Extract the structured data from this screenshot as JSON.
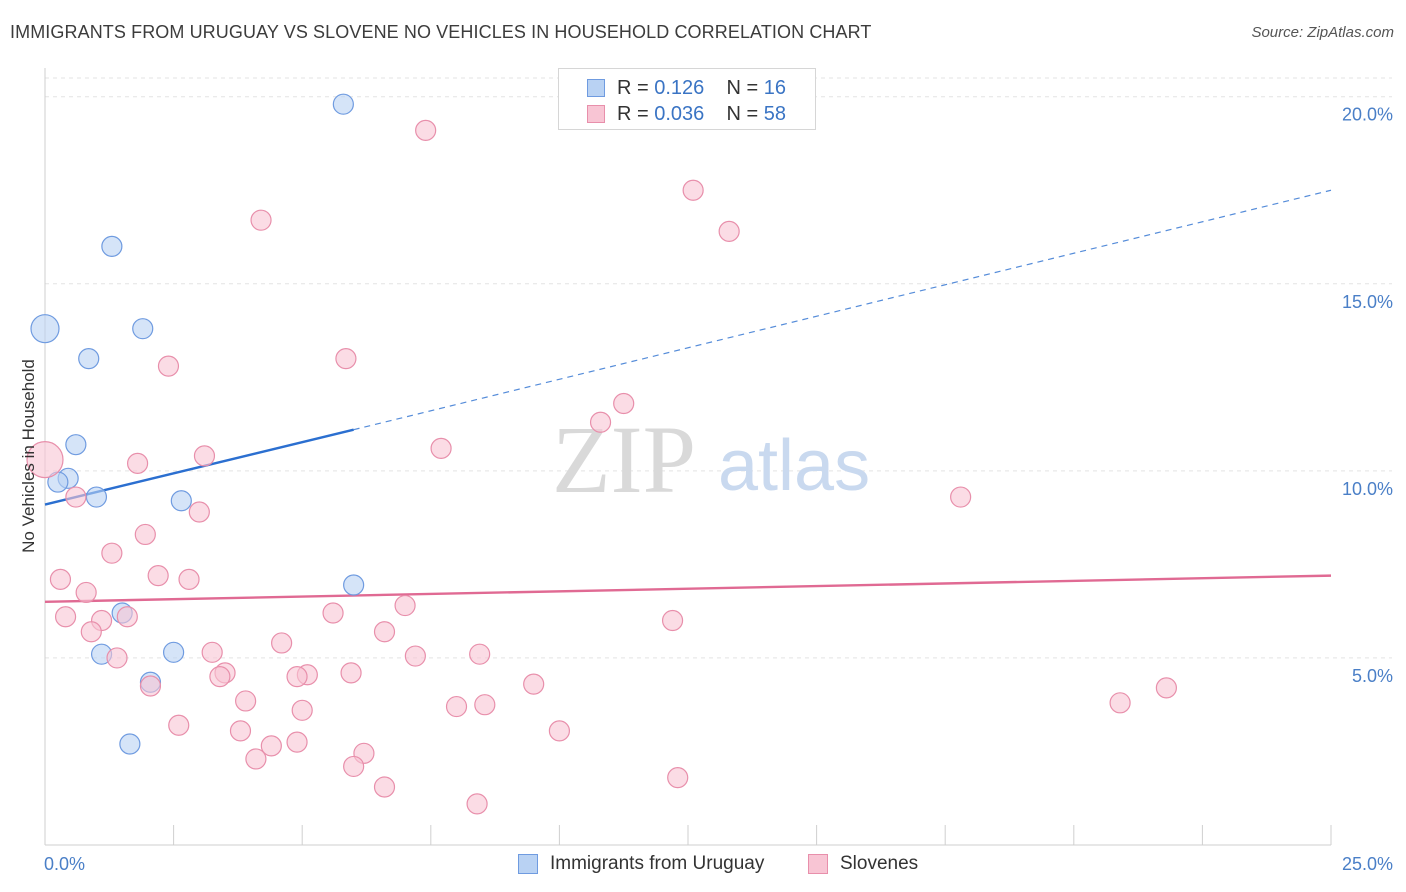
{
  "header": {
    "title": "IMMIGRANTS FROM URUGUAY VS SLOVENE NO VEHICLES IN HOUSEHOLD CORRELATION CHART",
    "source": "Source: ZipAtlas.com"
  },
  "legend": {
    "row1": {
      "r_label": "R = ",
      "r_value": "0.126",
      "n_label": "N = ",
      "n_value": "16"
    },
    "row2": {
      "r_label": "R = ",
      "r_value": "0.036",
      "n_label": "N = ",
      "n_value": "58"
    }
  },
  "bottom_legend": {
    "series1": "Immigrants from Uruguay",
    "series2": "Slovenes"
  },
  "watermark": {
    "zip": "ZIP",
    "atlas": "atlas"
  },
  "colors": {
    "series1_fill": "#b9d2f3",
    "series1_stroke": "#6f9be0",
    "series1_line": "#2b6fd0",
    "series2_fill": "#f8c5d4",
    "series2_stroke": "#e88fab",
    "series2_line": "#e06a93",
    "grid": "#e3e3e3",
    "tick_text": "#4a7fc7"
  },
  "chart_data": {
    "type": "scatter",
    "title": "IMMIGRANTS FROM URUGUAY VS SLOVENE NO VEHICLES IN HOUSEHOLD CORRELATION CHART",
    "xlabel": "",
    "ylabel": "No Vehicles in Household",
    "xlim": [
      0,
      25
    ],
    "ylim": [
      0,
      20.5
    ],
    "x_tick_labels": [
      "0.0%",
      "25.0%"
    ],
    "y_ticks": [
      5,
      10,
      15,
      20
    ],
    "y_tick_labels": [
      "5.0%",
      "10.0%",
      "15.0%",
      "20.0%"
    ],
    "grid": true,
    "series": [
      {
        "name": "Immigrants from Uruguay",
        "r": 0.126,
        "n": 16,
        "trend": {
          "x0": 0,
          "y0": 9.1,
          "x1": 6.0,
          "y1": 11.1,
          "dashed_to_x": 25,
          "dashed_to_y": 17.5
        },
        "points": [
          [
            5.8,
            19.8
          ],
          [
            1.3,
            16.0
          ],
          [
            1.9,
            13.8
          ],
          [
            0.0,
            13.8
          ],
          [
            0.85,
            13.0
          ],
          [
            0.6,
            10.7
          ],
          [
            0.45,
            9.8
          ],
          [
            0.25,
            9.7
          ],
          [
            1.0,
            9.3
          ],
          [
            2.65,
            9.2
          ],
          [
            6.0,
            6.95
          ],
          [
            1.5,
            6.2
          ],
          [
            1.1,
            5.1
          ],
          [
            2.5,
            5.15
          ],
          [
            2.05,
            4.35
          ],
          [
            1.65,
            2.7
          ]
        ],
        "sizes": [
          10,
          10,
          10,
          14,
          10,
          10,
          10,
          10,
          10,
          10,
          10,
          10,
          10,
          10,
          10,
          10
        ]
      },
      {
        "name": "Slovenes",
        "r": 0.036,
        "n": 58,
        "trend": {
          "x0": 0,
          "y0": 6.5,
          "x1": 25,
          "y1": 7.2
        },
        "points": [
          [
            7.4,
            19.1
          ],
          [
            12.6,
            17.5
          ],
          [
            4.2,
            16.7
          ],
          [
            13.3,
            16.4
          ],
          [
            2.4,
            12.8
          ],
          [
            5.85,
            13.0
          ],
          [
            11.25,
            11.8
          ],
          [
            10.8,
            11.3
          ],
          [
            7.7,
            10.6
          ],
          [
            0.0,
            10.3
          ],
          [
            1.8,
            10.2
          ],
          [
            3.1,
            10.4
          ],
          [
            0.6,
            9.3
          ],
          [
            3.0,
            8.9
          ],
          [
            17.8,
            9.3
          ],
          [
            1.95,
            8.3
          ],
          [
            1.3,
            7.8
          ],
          [
            0.3,
            7.1
          ],
          [
            2.2,
            7.2
          ],
          [
            2.8,
            7.1
          ],
          [
            0.8,
            6.75
          ],
          [
            0.4,
            6.1
          ],
          [
            1.6,
            6.1
          ],
          [
            1.1,
            6.0
          ],
          [
            5.6,
            6.2
          ],
          [
            7.0,
            6.4
          ],
          [
            12.2,
            6.0
          ],
          [
            0.9,
            5.7
          ],
          [
            6.6,
            5.7
          ],
          [
            4.6,
            5.4
          ],
          [
            3.25,
            5.15
          ],
          [
            8.45,
            5.1
          ],
          [
            7.2,
            5.05
          ],
          [
            1.4,
            5.0
          ],
          [
            3.5,
            4.6
          ],
          [
            3.4,
            4.5
          ],
          [
            5.1,
            4.55
          ],
          [
            4.9,
            4.5
          ],
          [
            5.95,
            4.6
          ],
          [
            9.5,
            4.3
          ],
          [
            21.8,
            4.2
          ],
          [
            2.05,
            4.25
          ],
          [
            3.9,
            3.85
          ],
          [
            5.0,
            3.6
          ],
          [
            8.55,
            3.75
          ],
          [
            20.9,
            3.8
          ],
          [
            8.0,
            3.7
          ],
          [
            2.6,
            3.2
          ],
          [
            3.8,
            3.05
          ],
          [
            10.0,
            3.05
          ],
          [
            4.9,
            2.75
          ],
          [
            4.4,
            2.65
          ],
          [
            4.1,
            2.3
          ],
          [
            6.2,
            2.45
          ],
          [
            6.0,
            2.1
          ],
          [
            12.3,
            1.8
          ],
          [
            6.6,
            1.55
          ],
          [
            8.4,
            1.1
          ]
        ],
        "sizes": [
          10,
          10,
          10,
          10,
          10,
          10,
          10,
          10,
          10,
          18,
          10,
          10,
          10,
          10,
          10,
          10,
          10,
          10,
          10,
          10,
          10,
          10,
          10,
          10,
          10,
          10,
          10,
          10,
          10,
          10,
          10,
          10,
          10,
          10,
          10,
          10,
          10,
          10,
          10,
          10,
          10,
          10,
          10,
          10,
          10,
          10,
          10,
          10,
          10,
          10,
          10,
          10,
          10,
          10,
          10,
          10,
          10,
          10
        ]
      }
    ]
  }
}
